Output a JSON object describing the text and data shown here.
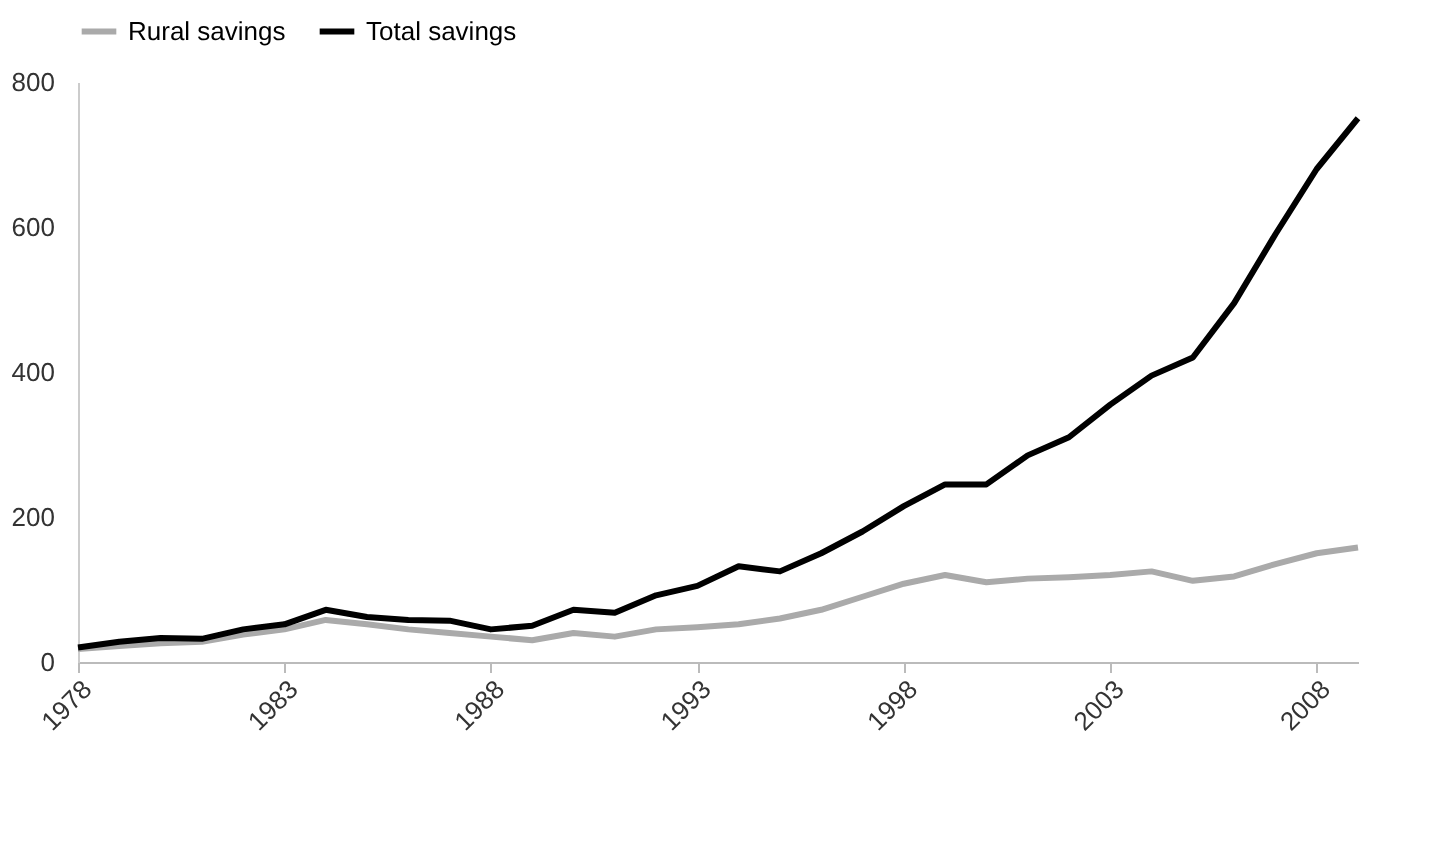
{
  "chart_data": {
    "type": "line",
    "x": [
      1978,
      1979,
      1980,
      1981,
      1982,
      1983,
      1984,
      1985,
      1986,
      1987,
      1988,
      1989,
      1990,
      1991,
      1992,
      1993,
      1994,
      1995,
      1996,
      1997,
      1998,
      1999,
      2000,
      2001,
      2002,
      2003,
      2004,
      2005,
      2006,
      2007,
      2008,
      2009
    ],
    "series": [
      {
        "name": "Rural savings",
        "color": "#aaaaaa",
        "values": [
          18,
          22,
          26,
          28,
          38,
          45,
          58,
          52,
          45,
          40,
          35,
          30,
          40,
          35,
          45,
          48,
          52,
          60,
          72,
          90,
          108,
          120,
          110,
          115,
          117,
          120,
          125,
          112,
          118,
          135,
          150,
          158
        ]
      },
      {
        "name": "Total savings",
        "color": "#000000",
        "values": [
          20,
          28,
          33,
          32,
          45,
          52,
          72,
          62,
          58,
          57,
          45,
          50,
          72,
          68,
          92,
          105,
          132,
          125,
          150,
          180,
          215,
          245,
          245,
          285,
          310,
          355,
          395,
          420,
          495,
          590,
          680,
          750
        ]
      }
    ],
    "xlim": [
      1978,
      2009
    ],
    "xticks": [
      1978,
      1983,
      1988,
      1993,
      1998,
      2003,
      2008
    ],
    "ylim": [
      0,
      800
    ],
    "yticks": [
      0,
      200,
      400,
      600,
      800
    ],
    "grid": false,
    "legend": "top",
    "marker": "none",
    "line_style": "solid"
  }
}
